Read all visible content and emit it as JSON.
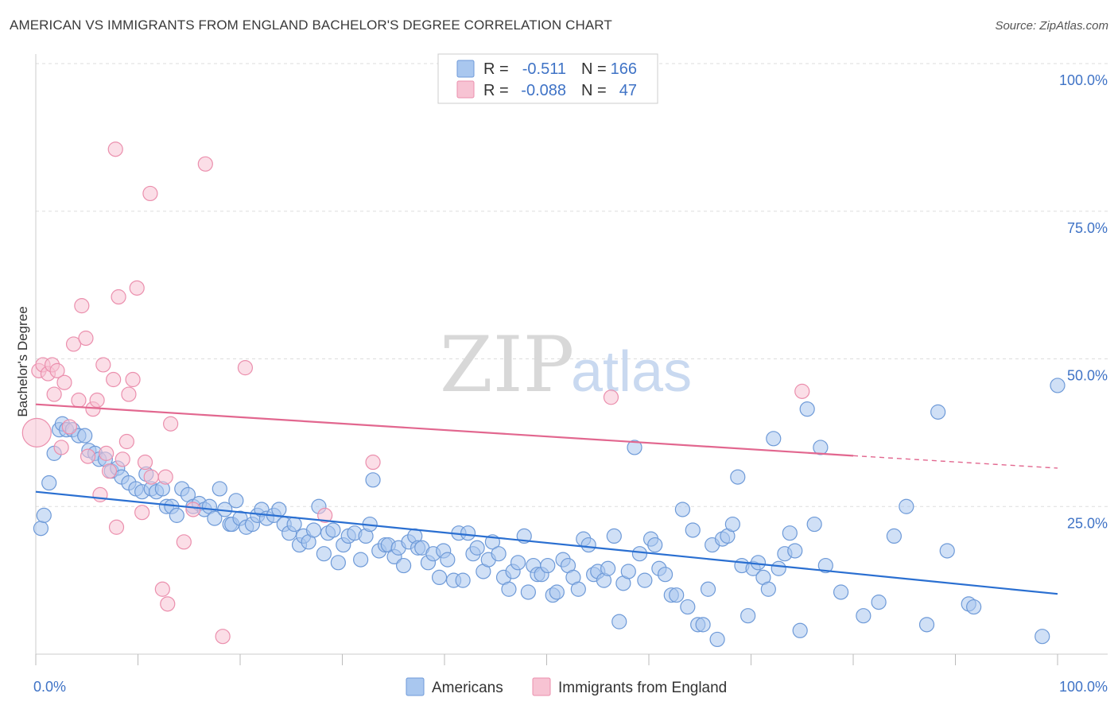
{
  "title": "AMERICAN VS IMMIGRANTS FROM ENGLAND BACHELOR'S DEGREE CORRELATION CHART",
  "source": "Source: ZipAtlas.com",
  "watermark": {
    "left": "ZIP",
    "right": "atlas"
  },
  "colors": {
    "blue_fill": "#a9c7ef",
    "blue_stroke": "#6e9ad8",
    "blue_line": "#2a6fd1",
    "pink_fill": "#f7c3d3",
    "pink_stroke": "#eb8fad",
    "pink_line": "#e2678f",
    "axis_label": "#3f73c6",
    "grid": "#dddddd"
  },
  "legend": {
    "rows": [
      {
        "series": "Americans",
        "r_label": "R =",
        "r_value": "-0.511",
        "n_label": "N =",
        "n_value": "166"
      },
      {
        "series": "Immigrants from England",
        "r_label": "R =",
        "r_value": "-0.088",
        "n_label": "N =",
        "n_value": "47"
      }
    ]
  },
  "chart_data": {
    "type": "scatter",
    "title": "AMERICAN VS IMMIGRANTS FROM ENGLAND BACHELOR'S DEGREE CORRELATION CHART",
    "xlabel": "",
    "ylabel": "Bachelor's Degree",
    "xlim": [
      0,
      100
    ],
    "ylim": [
      0,
      100
    ],
    "x_tick_labels": [
      "0.0%",
      "100.0%"
    ],
    "y_tick_labels": [
      {
        "value": 25,
        "label": "25.0%"
      },
      {
        "value": 50,
        "label": "50.0%"
      },
      {
        "value": 75,
        "label": "75.0%"
      },
      {
        "value": 100,
        "label": "100.0%"
      }
    ],
    "grid": true,
    "legend_position": "top-center",
    "series": [
      {
        "name": "Americans",
        "color": "#a9c7ef",
        "trend": {
          "x0": 0,
          "y0": 27.5,
          "x1": 100,
          "y1": 10.2
        },
        "points": [
          [
            0.5,
            21.3
          ],
          [
            0.8,
            23.5
          ],
          [
            1.3,
            29
          ],
          [
            1.8,
            34
          ],
          [
            2.3,
            38
          ],
          [
            2.6,
            39
          ],
          [
            3,
            38
          ],
          [
            3.6,
            38
          ],
          [
            4.2,
            37
          ],
          [
            4.8,
            37
          ],
          [
            5.2,
            34.5
          ],
          [
            5.8,
            34
          ],
          [
            6.2,
            33
          ],
          [
            6.8,
            33
          ],
          [
            7.4,
            31
          ],
          [
            8,
            31.5
          ],
          [
            8.4,
            30
          ],
          [
            9.1,
            29
          ],
          [
            9.8,
            28
          ],
          [
            10.4,
            27.5
          ],
          [
            10.8,
            30.5
          ],
          [
            11.3,
            28
          ],
          [
            11.8,
            27.5
          ],
          [
            12.4,
            28
          ],
          [
            12.8,
            25
          ],
          [
            13.3,
            25
          ],
          [
            13.8,
            23.5
          ],
          [
            14.3,
            28
          ],
          [
            14.9,
            27
          ],
          [
            15.4,
            25
          ],
          [
            16,
            25.5
          ],
          [
            16.5,
            24.5
          ],
          [
            17,
            25
          ],
          [
            17.5,
            23
          ],
          [
            18,
            28
          ],
          [
            18.5,
            24.5
          ],
          [
            19,
            22
          ],
          [
            19.2,
            22
          ],
          [
            19.6,
            26
          ],
          [
            20,
            23
          ],
          [
            20.6,
            21.5
          ],
          [
            21.2,
            22
          ],
          [
            21.7,
            23.5
          ],
          [
            22.1,
            24.5
          ],
          [
            22.6,
            23
          ],
          [
            23.3,
            23.5
          ],
          [
            23.8,
            24.5
          ],
          [
            24.3,
            22
          ],
          [
            24.8,
            20.5
          ],
          [
            25.3,
            22
          ],
          [
            25.8,
            18.5
          ],
          [
            26.2,
            20
          ],
          [
            26.7,
            19
          ],
          [
            27.2,
            21
          ],
          [
            27.7,
            25
          ],
          [
            28.2,
            17
          ],
          [
            28.6,
            20.5
          ],
          [
            29.1,
            21
          ],
          [
            29.6,
            15.5
          ],
          [
            30.1,
            18.5
          ],
          [
            30.6,
            20
          ],
          [
            31.2,
            20.5
          ],
          [
            31.8,
            16
          ],
          [
            32.3,
            20
          ],
          [
            32.7,
            22
          ],
          [
            33,
            29.5
          ],
          [
            33.6,
            17.5
          ],
          [
            34.2,
            18.5
          ],
          [
            34.5,
            18.5
          ],
          [
            35.1,
            16.5
          ],
          [
            35.5,
            18
          ],
          [
            36,
            15
          ],
          [
            36.5,
            19
          ],
          [
            37.1,
            20
          ],
          [
            37.4,
            18
          ],
          [
            37.8,
            18
          ],
          [
            38.4,
            15.5
          ],
          [
            38.9,
            17
          ],
          [
            39.5,
            13
          ],
          [
            39.9,
            17.5
          ],
          [
            40.3,
            16
          ],
          [
            40.9,
            12.5
          ],
          [
            41.4,
            20.5
          ],
          [
            41.8,
            12.5
          ],
          [
            42.3,
            20.5
          ],
          [
            42.8,
            17
          ],
          [
            43.2,
            18
          ],
          [
            43.8,
            14
          ],
          [
            44.3,
            16
          ],
          [
            44.7,
            19
          ],
          [
            45.3,
            17
          ],
          [
            45.8,
            13
          ],
          [
            46.3,
            11
          ],
          [
            46.7,
            14
          ],
          [
            47.2,
            15.5
          ],
          [
            47.8,
            20
          ],
          [
            48.2,
            10.5
          ],
          [
            48.7,
            15
          ],
          [
            49.1,
            13.5
          ],
          [
            49.5,
            13.5
          ],
          [
            50.1,
            15
          ],
          [
            50.6,
            10
          ],
          [
            51,
            10.5
          ],
          [
            51.6,
            16
          ],
          [
            52.1,
            15
          ],
          [
            52.6,
            13
          ],
          [
            53.1,
            11
          ],
          [
            53.6,
            19.5
          ],
          [
            54.1,
            18.5
          ],
          [
            54.6,
            13.5
          ],
          [
            55,
            14
          ],
          [
            55.6,
            12.5
          ],
          [
            56,
            14.5
          ],
          [
            56.6,
            20
          ],
          [
            57.1,
            5.5
          ],
          [
            57.5,
            12
          ],
          [
            58,
            14
          ],
          [
            58.6,
            35
          ],
          [
            59.1,
            17
          ],
          [
            59.6,
            12.5
          ],
          [
            60.2,
            19.5
          ],
          [
            60.6,
            18.5
          ],
          [
            61,
            14.5
          ],
          [
            61.6,
            13.5
          ],
          [
            62.2,
            10
          ],
          [
            62.7,
            10
          ],
          [
            63.3,
            24.5
          ],
          [
            63.8,
            8
          ],
          [
            64.3,
            21
          ],
          [
            64.8,
            5
          ],
          [
            65.3,
            5
          ],
          [
            65.8,
            11
          ],
          [
            66.2,
            18.5
          ],
          [
            66.7,
            2.5
          ],
          [
            67.2,
            19.5
          ],
          [
            67.7,
            20
          ],
          [
            68.2,
            22
          ],
          [
            68.7,
            30
          ],
          [
            69.1,
            15
          ],
          [
            69.7,
            6.5
          ],
          [
            70.2,
            14.5
          ],
          [
            70.7,
            15.5
          ],
          [
            71.2,
            13
          ],
          [
            71.7,
            11
          ],
          [
            72.2,
            36.5
          ],
          [
            72.7,
            14.5
          ],
          [
            73.3,
            17
          ],
          [
            73.8,
            20.5
          ],
          [
            74.3,
            17.5
          ],
          [
            74.8,
            4
          ],
          [
            75.5,
            41.5
          ],
          [
            76.2,
            22
          ],
          [
            76.8,
            35
          ],
          [
            77.3,
            15
          ],
          [
            78.8,
            10.5
          ],
          [
            81,
            6.5
          ],
          [
            84,
            20
          ],
          [
            85.2,
            25
          ],
          [
            87.2,
            5
          ],
          [
            88.3,
            41
          ],
          [
            89.2,
            17.5
          ],
          [
            91.3,
            8.5
          ],
          [
            91.8,
            8
          ],
          [
            98.5,
            3
          ],
          [
            100,
            45.5
          ],
          [
            82.5,
            8.8
          ]
        ]
      },
      {
        "name": "Immigrants from England",
        "color": "#f7c3d3",
        "trend": {
          "x0": 0,
          "y0": 42.3,
          "x1": 80,
          "y1": 33.6,
          "dash_to_x": 100,
          "dash_to_y": 31.5
        },
        "points": [
          [
            0.1,
            37.5
          ],
          [
            0.3,
            48
          ],
          [
            0.7,
            49
          ],
          [
            1.2,
            47.5
          ],
          [
            1.6,
            49
          ],
          [
            1.8,
            44
          ],
          [
            2.1,
            48
          ],
          [
            2.5,
            35
          ],
          [
            2.8,
            46
          ],
          [
            3.3,
            38.5
          ],
          [
            3.7,
            52.5
          ],
          [
            4.2,
            43
          ],
          [
            4.5,
            59
          ],
          [
            4.9,
            53.5
          ],
          [
            5.1,
            33.5
          ],
          [
            5.6,
            41.5
          ],
          [
            6,
            43
          ],
          [
            6.3,
            27
          ],
          [
            6.6,
            49
          ],
          [
            6.9,
            34
          ],
          [
            7.2,
            31
          ],
          [
            7.6,
            46.5
          ],
          [
            7.9,
            21.5
          ],
          [
            8.1,
            60.5
          ],
          [
            8.5,
            33
          ],
          [
            8.9,
            36
          ],
          [
            9.1,
            44
          ],
          [
            9.5,
            46.5
          ],
          [
            9.9,
            62
          ],
          [
            10.4,
            24
          ],
          [
            10.7,
            32.5
          ],
          [
            11.3,
            30
          ],
          [
            11.2,
            78
          ],
          [
            12.4,
            11
          ],
          [
            12.7,
            30
          ],
          [
            12.9,
            8.5
          ],
          [
            13.2,
            39
          ],
          [
            14.5,
            19
          ],
          [
            15.4,
            24.5
          ],
          [
            16.6,
            83
          ],
          [
            18.3,
            3
          ],
          [
            20.5,
            48.5
          ],
          [
            28.3,
            23.5
          ],
          [
            33,
            32.5
          ],
          [
            56.3,
            43.5
          ],
          [
            75,
            44.5
          ],
          [
            7.8,
            85.5
          ]
        ]
      }
    ]
  }
}
